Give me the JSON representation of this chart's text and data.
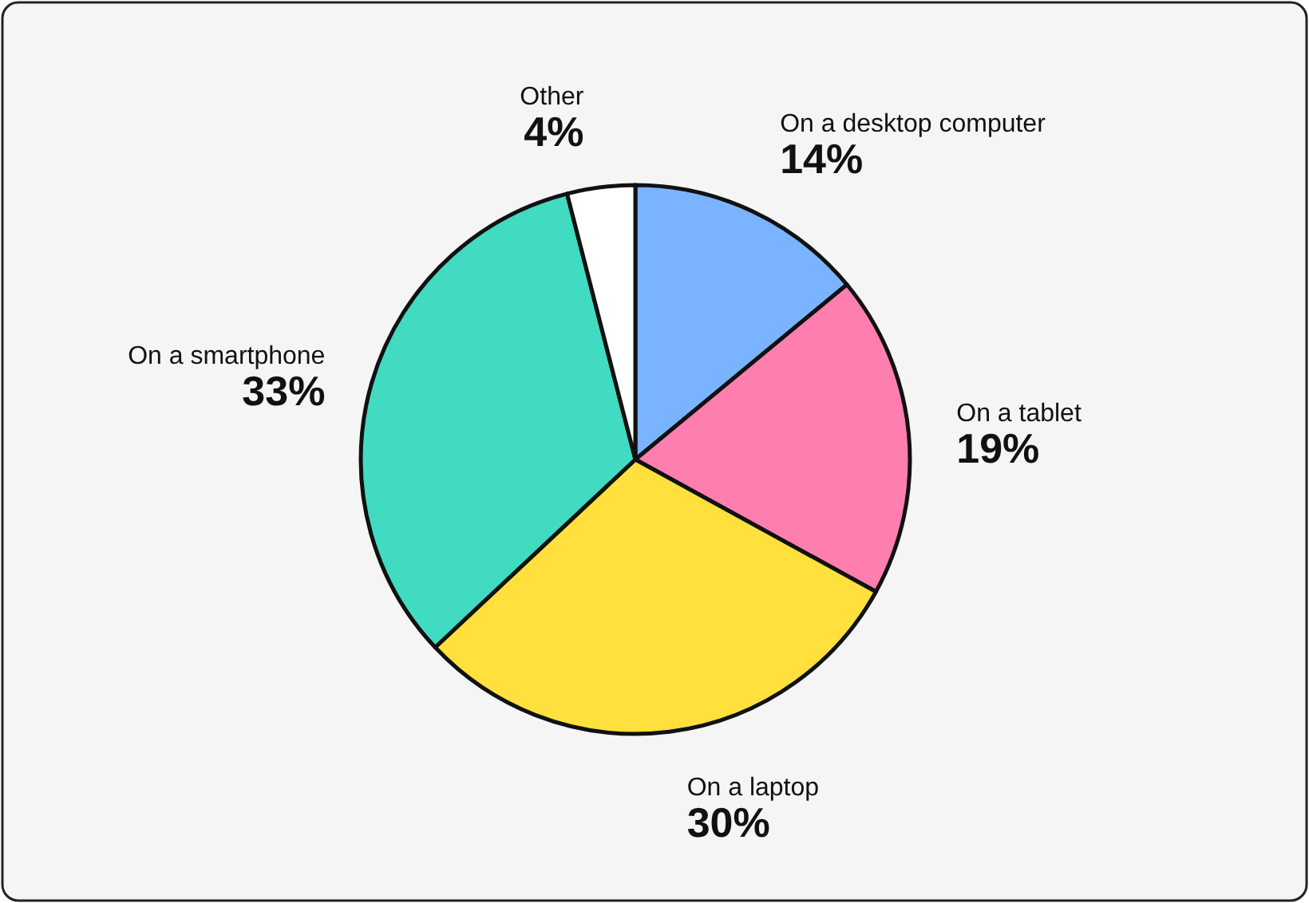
{
  "chart_data": {
    "type": "pie",
    "categories": [
      "On a desktop computer",
      "On a tablet",
      "On a laptop",
      "On a smartphone",
      "Other"
    ],
    "values": [
      14,
      19,
      30,
      33,
      4
    ],
    "colors": [
      "#7ab3ff",
      "#ff7eb0",
      "#ffe03d",
      "#40dbc0",
      "#ffffff"
    ],
    "value_labels": [
      "14%",
      "19%",
      "30%",
      "33%",
      "4%"
    ]
  }
}
